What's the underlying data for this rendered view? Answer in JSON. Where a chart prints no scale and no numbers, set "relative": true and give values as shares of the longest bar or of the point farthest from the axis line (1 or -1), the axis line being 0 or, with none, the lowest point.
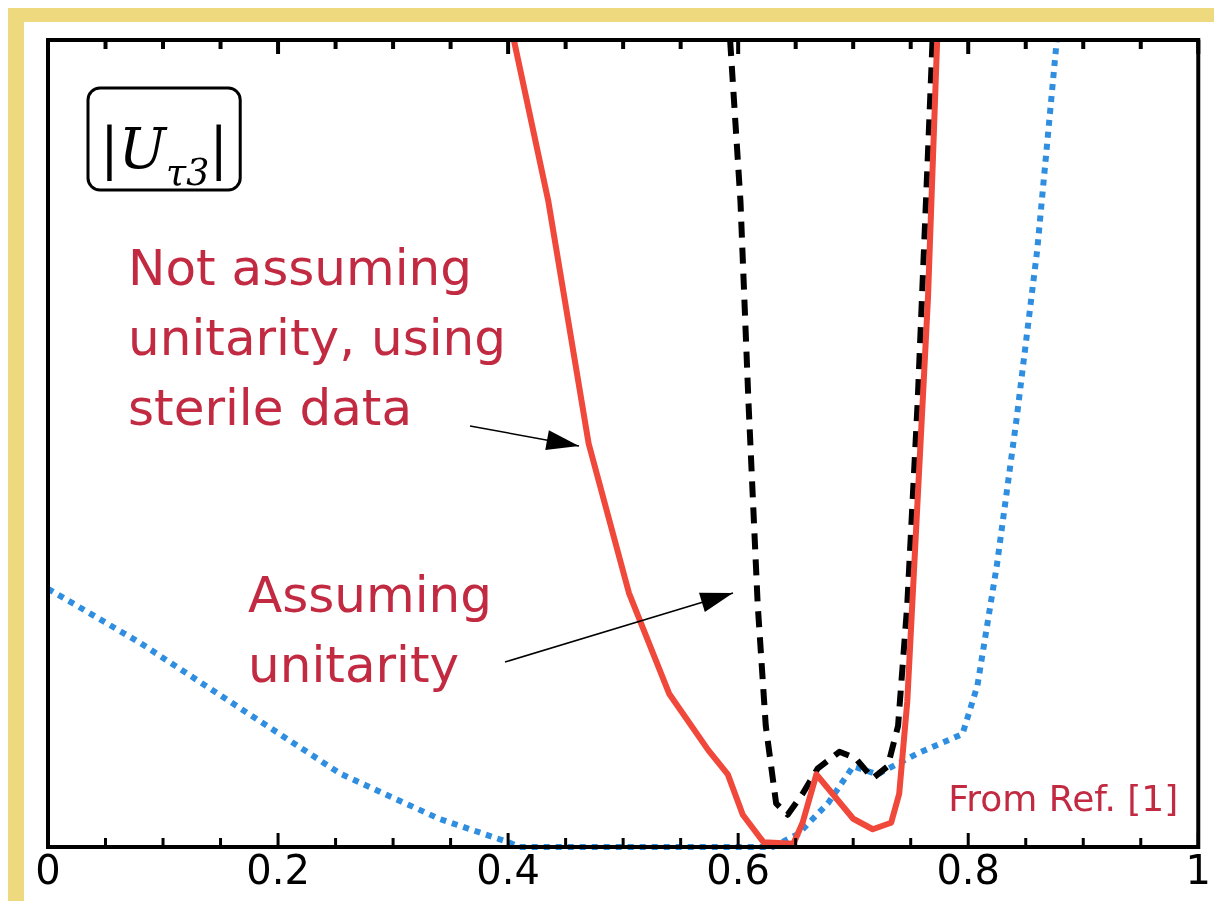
{
  "chart_data": {
    "type": "line",
    "relative": true,
    "marker": "none",
    "xlim": [
      0,
      1
    ],
    "xticks": [
      0,
      {
        "value": 0.05,
        "label": null
      },
      {
        "value": 0.1,
        "label": null
      },
      {
        "value": 0.15,
        "label": null
      },
      0.2,
      {
        "value": 0.25,
        "label": null
      },
      {
        "value": 0.3,
        "label": null
      },
      {
        "value": 0.35,
        "label": null
      },
      0.4,
      {
        "value": 0.45,
        "label": null
      },
      {
        "value": 0.5,
        "label": null
      },
      {
        "value": 0.55,
        "label": null
      },
      0.6,
      {
        "value": 0.65,
        "label": null
      },
      {
        "value": 0.7,
        "label": null
      },
      {
        "value": 0.75,
        "label": null
      },
      0.8,
      {
        "value": 0.85,
        "label": null
      },
      {
        "value": 0.9,
        "label": null
      },
      {
        "value": 0.95,
        "label": null
      },
      1
    ],
    "series": [
      {
        "color": "#f0483a",
        "line_style": "solid",
        "x": [
          0.405,
          0.435,
          0.47,
          0.505,
          0.54,
          0.574,
          0.591,
          0.604,
          0.622,
          0.648,
          0.656,
          0.668,
          0.682,
          0.7,
          0.717,
          0.733,
          0.74,
          0.747,
          0.756,
          0.765,
          0.773
        ],
        "values": [
          1,
          0.8,
          0.5,
          0.315,
          0.19,
          0.12,
          0.09,
          0.04,
          0.006,
          0.004,
          0.03,
          0.09,
          0.066,
          0.035,
          0.022,
          0.03,
          0.066,
          0.18,
          0.43,
          0.68,
          1
        ]
      },
      {
        "color": "#000000",
        "line_style": "dashed",
        "x": [
          0.593,
          0.602,
          0.609,
          0.617,
          0.624,
          0.633,
          0.643,
          0.656,
          0.669,
          0.688,
          0.702,
          0.717,
          0.73,
          0.739,
          0.747,
          0.756,
          0.765,
          0.769
        ],
        "values": [
          1,
          0.8,
          0.55,
          0.3,
          0.15,
          0.054,
          0.04,
          0.066,
          0.097,
          0.118,
          0.11,
          0.085,
          0.1,
          0.15,
          0.3,
          0.55,
          0.86,
          1
        ]
      },
      {
        "color": "#2f8ee0",
        "line_style": "dotted",
        "x": [
          0,
          0.08,
          0.167,
          0.254,
          0.34,
          0.4,
          0.41,
          0.63,
          0.652,
          0.678,
          0.7,
          0.721,
          0.756,
          0.795,
          0.808,
          0.825,
          0.842,
          0.86,
          0.877
        ],
        "values": [
          0.32,
          0.253,
          0.172,
          0.091,
          0.035,
          0.006,
          0,
          0,
          0.016,
          0.054,
          0.1,
          0.09,
          0.116,
          0.14,
          0.2,
          0.35,
          0.53,
          0.74,
          1
        ]
      }
    ],
    "annotations": [
      "|U$_{τ3}$|",
      "Not assuming unitarity, using sterile data",
      "Assuming unitarity",
      "From Ref. [1]"
    ],
    "grid": false,
    "legend": false
  }
}
